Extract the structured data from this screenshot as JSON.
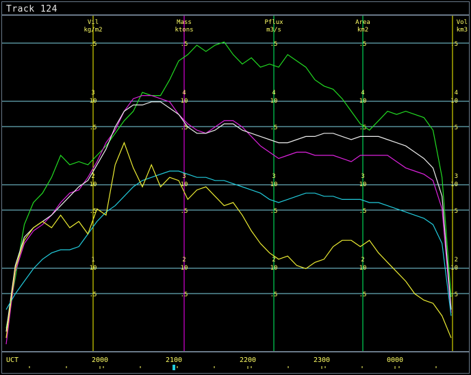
{
  "window": {
    "title": "Track 124"
  },
  "time_axis": {
    "label": "UCT",
    "ticks": [
      "2000",
      "2100",
      "2200",
      "2300",
      "0000"
    ]
  },
  "axes": [
    {
      "name": "Vil",
      "unit": "kg/m2",
      "color": "#ffff00"
    },
    {
      "name": "Mass",
      "unit": "ktons",
      "color": "#ff33ff"
    },
    {
      "name": "Pflux",
      "unit": "m3/s",
      "color": "#66ff66"
    },
    {
      "name": "Area",
      "unit": "km2",
      "color": "#66ff66"
    },
    {
      "name": "Vol",
      "unit": "km3",
      "color": "#ffff00"
    }
  ],
  "colors": {
    "grid_h": "#7fd6e6",
    "vil": "#ffff00",
    "mass": "#ff00ff",
    "pflux": "#00ff66",
    "area": "#66ffdd",
    "vol": "#ffffff",
    "green": "#22dd22",
    "cyan": "#22ccdd",
    "magenta": "#dd22dd",
    "white": "#eeeeee",
    "yellow": "#eeee33"
  },
  "chart_data": {
    "type": "line",
    "title": "Track 124",
    "xlabel": "UCT",
    "x_ticks": [
      "2000",
      "2100",
      "2200",
      "2300",
      "0000"
    ],
    "y_scale": "log",
    "tick_labels": [
      ".5",
      "1",
      "10",
      ".5",
      "2",
      "10",
      ".5",
      "3",
      "10",
      ".5",
      "4",
      "10",
      ".5"
    ],
    "per_axis_decade_labels": {
      "Vil": [
        "1",
        "2",
        "3"
      ],
      "Mass": [
        "2",
        "3",
        "4"
      ],
      "Pflux": [
        "2",
        "3",
        "4"
      ],
      "Area": [
        "2",
        "3",
        "4"
      ],
      "Vol": [
        "2",
        "3",
        "4"
      ]
    },
    "series": [
      {
        "color": "green",
        "values": [
          0.05,
          0.21,
          0.38,
          0.45,
          0.48,
          0.53,
          0.6,
          0.57,
          0.58,
          0.57,
          0.6,
          0.63,
          0.67,
          0.71,
          0.74,
          0.8,
          0.79,
          0.79,
          0.84,
          0.9,
          0.92,
          0.95,
          0.93,
          0.95,
          0.96,
          0.92,
          0.89,
          0.91,
          0.88,
          0.89,
          0.88,
          0.92,
          0.9,
          0.88,
          0.84,
          0.82,
          0.81,
          0.78,
          0.74,
          0.7,
          0.68,
          0.71,
          0.74,
          0.73,
          0.74,
          0.73,
          0.72,
          0.68,
          0.53,
          0.15
        ]
      },
      {
        "color": "magenta",
        "values": [
          0.0,
          0.23,
          0.32,
          0.36,
          0.38,
          0.41,
          0.45,
          0.48,
          0.49,
          0.53,
          0.58,
          0.64,
          0.68,
          0.74,
          0.78,
          0.79,
          0.79,
          0.78,
          0.77,
          0.73,
          0.7,
          0.68,
          0.67,
          0.69,
          0.71,
          0.71,
          0.69,
          0.66,
          0.63,
          0.61,
          0.59,
          0.6,
          0.61,
          0.61,
          0.6,
          0.6,
          0.6,
          0.59,
          0.58,
          0.6,
          0.6,
          0.6,
          0.6,
          0.58,
          0.56,
          0.55,
          0.54,
          0.52,
          0.43,
          0.1
        ]
      },
      {
        "color": "white",
        "values": [
          0.04,
          0.25,
          0.34,
          0.37,
          0.39,
          0.41,
          0.44,
          0.47,
          0.5,
          0.52,
          0.57,
          0.62,
          0.69,
          0.74,
          0.76,
          0.76,
          0.77,
          0.77,
          0.75,
          0.73,
          0.69,
          0.67,
          0.67,
          0.68,
          0.7,
          0.7,
          0.68,
          0.67,
          0.66,
          0.65,
          0.64,
          0.64,
          0.65,
          0.66,
          0.66,
          0.67,
          0.67,
          0.66,
          0.65,
          0.66,
          0.66,
          0.66,
          0.65,
          0.64,
          0.63,
          0.61,
          0.59,
          0.56,
          0.47,
          0.11
        ]
      },
      {
        "color": "cyan",
        "values": [
          0.11,
          0.16,
          0.2,
          0.24,
          0.27,
          0.29,
          0.3,
          0.3,
          0.31,
          0.35,
          0.39,
          0.42,
          0.44,
          0.47,
          0.5,
          0.52,
          0.53,
          0.54,
          0.55,
          0.55,
          0.54,
          0.53,
          0.53,
          0.52,
          0.52,
          0.51,
          0.5,
          0.49,
          0.48,
          0.46,
          0.45,
          0.46,
          0.47,
          0.48,
          0.48,
          0.47,
          0.47,
          0.46,
          0.46,
          0.46,
          0.45,
          0.45,
          0.44,
          0.43,
          0.42,
          0.41,
          0.4,
          0.38,
          0.32,
          0.09
        ]
      },
      {
        "color": "yellow",
        "values": [
          0.02,
          0.24,
          0.33,
          0.37,
          0.39,
          0.37,
          0.41,
          0.37,
          0.39,
          0.35,
          0.43,
          0.41,
          0.57,
          0.64,
          0.56,
          0.5,
          0.57,
          0.5,
          0.53,
          0.52,
          0.46,
          0.49,
          0.5,
          0.47,
          0.44,
          0.45,
          0.41,
          0.36,
          0.32,
          0.29,
          0.27,
          0.28,
          0.25,
          0.24,
          0.26,
          0.27,
          0.31,
          0.33,
          0.33,
          0.31,
          0.33,
          0.29,
          0.26,
          0.23,
          0.2,
          0.16,
          0.14,
          0.13,
          0.09,
          0.02
        ]
      }
    ]
  }
}
